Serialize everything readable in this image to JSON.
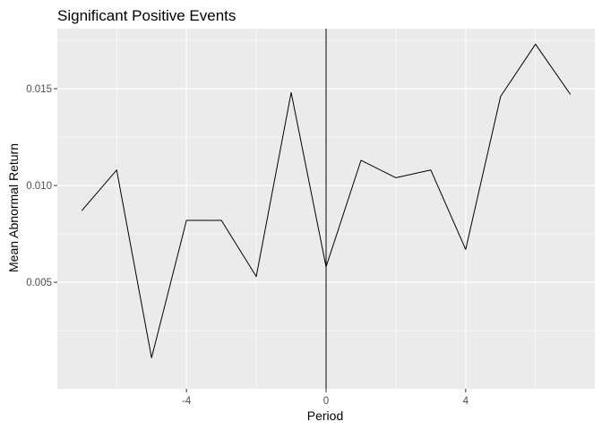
{
  "chart_data": {
    "type": "line",
    "title": "Significant Positive Events",
    "xlabel": "Period",
    "ylabel": "Mean Abnormal Return",
    "x": [
      -7,
      -6,
      -5,
      -4,
      -3,
      -2,
      -1,
      0,
      1,
      2,
      3,
      4,
      5,
      6,
      7
    ],
    "values": [
      0.0087,
      0.0108,
      0.0011,
      0.0082,
      0.0082,
      0.0053,
      0.0148,
      0.0058,
      0.0113,
      0.0104,
      0.0108,
      0.0067,
      0.0146,
      0.0173,
      0.0147
    ],
    "xlim": [
      -7.7,
      7.7
    ],
    "ylim": [
      -0.0005,
      0.0181
    ],
    "x_ticks": [
      -4,
      0,
      4
    ],
    "x_tick_labels": [
      "-4",
      "0",
      "4"
    ],
    "x_minor_ticks": [
      -6,
      -2,
      2,
      6
    ],
    "y_ticks": [
      0.005,
      0.01,
      0.015
    ],
    "y_tick_labels": [
      "0.005",
      "0.010",
      "0.015"
    ],
    "y_minor_ticks": [
      0.0025,
      0.0075,
      0.0125,
      0.0175
    ],
    "vline_x": 0,
    "grid": true,
    "colors": {
      "panel_background": "#ebebeb",
      "grid_line": "#ffffff",
      "series_line": "#000000",
      "tick_text": "#4d4d4d"
    }
  }
}
